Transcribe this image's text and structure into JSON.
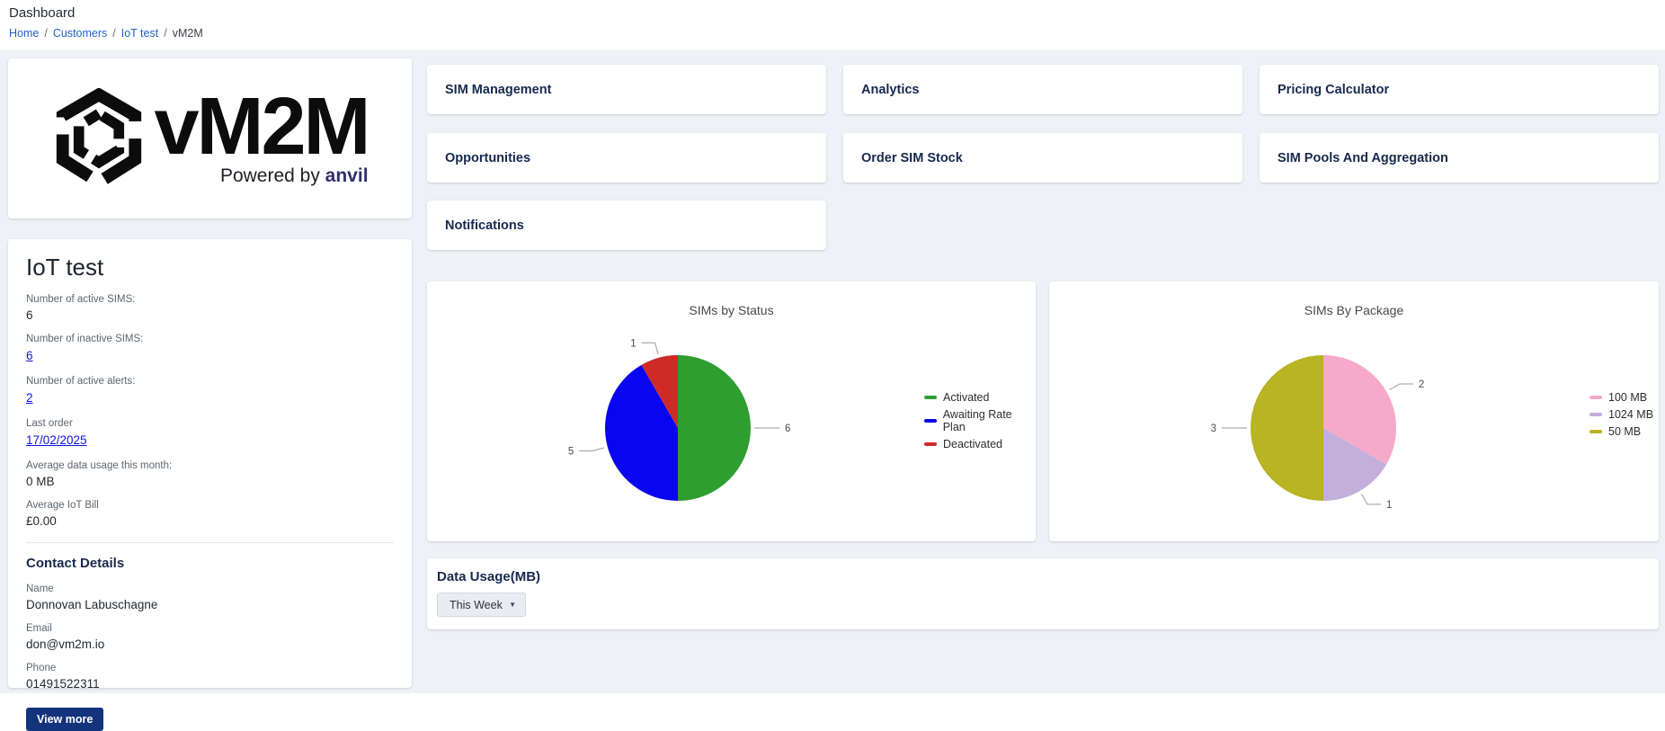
{
  "page": {
    "title": "Dashboard"
  },
  "breadcrumb": {
    "separator": "/",
    "items": [
      "Home",
      "Customers",
      "IoT test",
      "vM2M"
    ]
  },
  "logo": {
    "brand": "vM2M",
    "tagline_prefix": "Powered by ",
    "tagline_brand": "anvil"
  },
  "customer": {
    "name": "IoT test",
    "stats": [
      {
        "label": "Number of active SIMS:",
        "value": "6"
      },
      {
        "label": "Number of inactive SIMS:",
        "value": "6"
      },
      {
        "label": "Number of active alerts:",
        "value": "2"
      },
      {
        "label": "Last order",
        "value": "17/02/2025"
      },
      {
        "label": "Average data usage this month:",
        "value": "0 MB"
      },
      {
        "label": "Average IoT Bill",
        "value": "£0.00"
      }
    ],
    "contact": {
      "heading": "Contact Details",
      "fields": [
        {
          "label": "Name",
          "value": "Donnovan Labuschagne"
        },
        {
          "label": "Email",
          "value": "don@vm2m.io"
        },
        {
          "label": "Phone",
          "value": "01491522311"
        }
      ],
      "view_more_label": "View more"
    }
  },
  "nav": {
    "cards": [
      {
        "label": "SIM Management"
      },
      {
        "label": "Analytics"
      },
      {
        "label": "Pricing Calculator"
      },
      {
        "label": "Opportunities"
      },
      {
        "label": "Order SIM Stock"
      },
      {
        "label": "SIM Pools And Aggregation"
      },
      {
        "label": "Notifications"
      }
    ]
  },
  "chart_data": [
    {
      "type": "pie",
      "title": "SIMs by Status",
      "labels": [
        "Activated",
        "Awaiting Rate Plan",
        "Deactivated"
      ],
      "values": [
        6,
        5,
        1
      ],
      "colors": [
        "#2f9e30",
        "#0a05f0",
        "#cf2a28"
      ],
      "legend_position": "right",
      "total": 12
    },
    {
      "type": "pie",
      "title": "SIMs By Package",
      "labels": [
        "100 MB",
        "1024 MB",
        "50 MB"
      ],
      "values": [
        2,
        1,
        3
      ],
      "colors": [
        "#f4aac8",
        "#c4aeda",
        "#b8b422"
      ],
      "legend_position": "right",
      "total": 6
    }
  ],
  "data_usage": {
    "title": "Data Usage(MB)",
    "period_selected": "This Week"
  },
  "icons": {
    "dropdown_caret": "▼"
  }
}
